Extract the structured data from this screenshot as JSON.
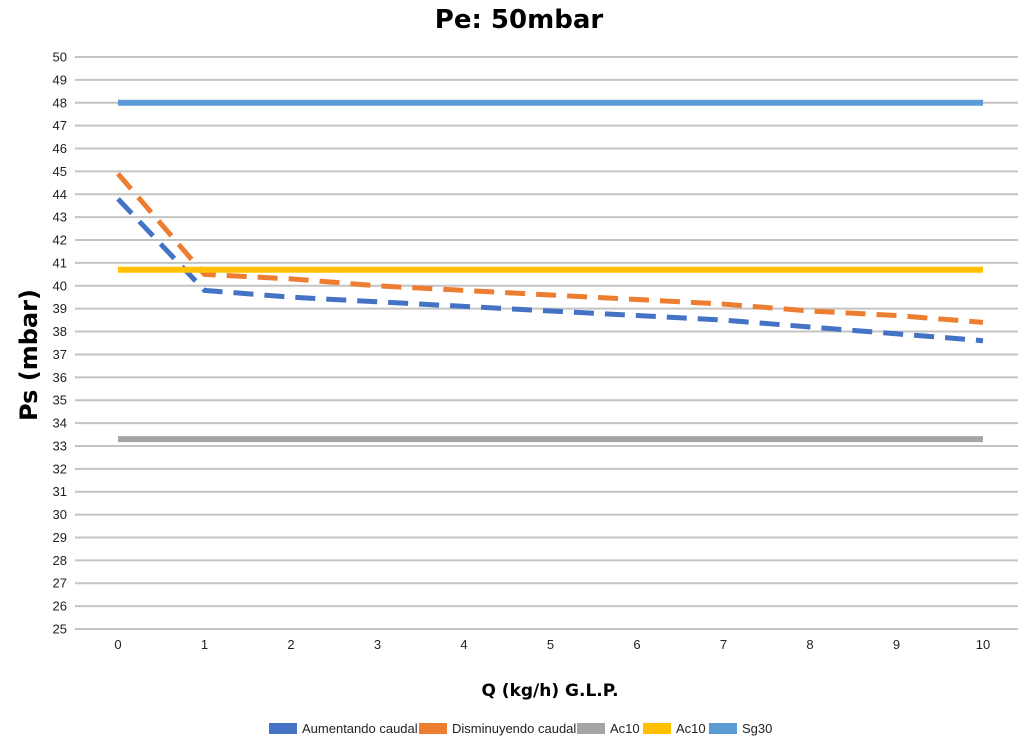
{
  "chart_data": {
    "type": "line",
    "title": "Pe: 50mbar",
    "xlabel": "Q (kg/h) G.L.P.",
    "ylabel": "Ps (mbar)",
    "x": [
      0,
      1,
      2,
      3,
      4,
      5,
      6,
      7,
      8,
      9,
      10
    ],
    "xlim": [
      0,
      10
    ],
    "ylim": [
      25,
      50
    ],
    "ytick_step": 1,
    "grid": true,
    "legend_position": "bottom",
    "series": [
      {
        "name": "Aumentando caudal",
        "color": "#4472C4",
        "dashed": true,
        "values": [
          43.8,
          39.8,
          39.5,
          39.3,
          39.1,
          38.9,
          38.7,
          38.5,
          38.2,
          37.9,
          37.6
        ]
      },
      {
        "name": "Disminuyendo caudal",
        "color": "#ED7D31",
        "dashed": true,
        "values": [
          44.9,
          40.5,
          40.3,
          40.0,
          39.8,
          39.6,
          39.4,
          39.2,
          38.9,
          38.7,
          38.4
        ]
      },
      {
        "name": "Ac10",
        "color": "#A5A5A5",
        "dashed": false,
        "values": [
          33.3,
          33.3,
          33.3,
          33.3,
          33.3,
          33.3,
          33.3,
          33.3,
          33.3,
          33.3,
          33.3
        ]
      },
      {
        "name": "Ac10",
        "color": "#FFC000",
        "dashed": false,
        "values": [
          40.7,
          40.7,
          40.7,
          40.7,
          40.7,
          40.7,
          40.7,
          40.7,
          40.7,
          40.7,
          40.7
        ]
      },
      {
        "name": "Sg30",
        "color": "#5B9BD5",
        "dashed": false,
        "values": [
          48,
          48,
          48,
          48,
          48,
          48,
          48,
          48,
          48,
          48,
          48
        ]
      }
    ]
  }
}
